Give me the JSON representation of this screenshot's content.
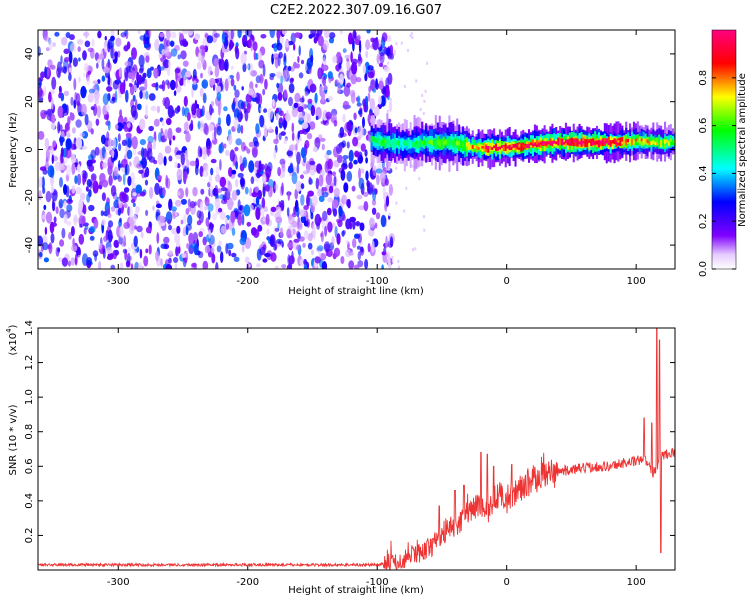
{
  "figure_title": "C2E2.2022.307.09.16.G07",
  "colorbar": {
    "label": "Normalized spectral amplitude",
    "ticks": [
      "0.0",
      "0.2",
      "0.4",
      "0.6",
      "0.8"
    ],
    "range": [
      0,
      1
    ],
    "colormap": [
      "#ffffff",
      "#7f00ff",
      "#0000ff",
      "#00ffff",
      "#00ff00",
      "#ffff00",
      "#ff0000",
      "#ff0080"
    ]
  },
  "chart_data": [
    {
      "type": "heatmap",
      "title": "",
      "xlabel": "Height of straight line (km)",
      "ylabel": "Frequency (Hz)",
      "xlim": [
        -362,
        130
      ],
      "ylim": [
        -50,
        50
      ],
      "xticks": [
        -300,
        -200,
        -100,
        0,
        100
      ],
      "yticks": [
        -40,
        -20,
        0,
        20,
        40
      ],
      "noise_region": {
        "x_range": [
          -362,
          -93
        ],
        "f_range": [
          -50,
          50
        ],
        "amplitude": [
          0.05,
          0.35
        ]
      },
      "signal_ridge": {
        "x": [
          -105,
          -95,
          -85,
          -75,
          -65,
          -55,
          -45,
          -35,
          -25,
          -15,
          -5,
          5,
          20,
          40,
          60,
          80,
          100,
          115,
          130
        ],
        "frequency_hz": [
          4,
          3,
          2.5,
          2,
          3,
          2.5,
          3,
          2,
          1,
          0.5,
          1,
          1,
          2,
          3,
          3,
          3,
          3.5,
          3,
          3
        ],
        "peak_amplitude": [
          0.5,
          0.55,
          0.5,
          0.5,
          0.55,
          0.6,
          0.6,
          0.6,
          0.8,
          0.9,
          0.9,
          0.9,
          0.9,
          0.95,
          0.95,
          0.95,
          0.75,
          0.7,
          0.65
        ]
      }
    },
    {
      "type": "line",
      "title": "",
      "xlabel": "Height of straight line (km)",
      "ylabel": "SNR (10 * v/v)",
      "y_multiplier_label": "(x10",
      "y_multiplier_exp": "4",
      "xlim": [
        -362,
        130
      ],
      "ylim": [
        0,
        1.4
      ],
      "xticks": [
        -300,
        -200,
        -100,
        0,
        100
      ],
      "yticks": [
        "0.2",
        "0.4",
        "0.6",
        "0.8",
        "1.0",
        "1.2",
        "1.4"
      ],
      "series_color": "#ee3333",
      "x": [
        -362,
        -300,
        -250,
        -200,
        -150,
        -120,
        -100,
        -90,
        -80,
        -70,
        -60,
        -50,
        -45,
        -40,
        -35,
        -30,
        -25,
        -20,
        -15,
        -10,
        -5,
        0,
        5,
        10,
        15,
        20,
        25,
        30,
        40,
        50,
        60,
        70,
        80,
        90,
        100,
        105,
        110,
        113,
        116,
        120,
        125,
        130
      ],
      "values": [
        0.03,
        0.03,
        0.03,
        0.03,
        0.03,
        0.03,
        0.03,
        0.04,
        0.05,
        0.09,
        0.13,
        0.18,
        0.25,
        0.24,
        0.28,
        0.33,
        0.36,
        0.38,
        0.32,
        0.4,
        0.44,
        0.4,
        0.44,
        0.48,
        0.49,
        0.52,
        0.54,
        0.55,
        0.57,
        0.58,
        0.59,
        0.6,
        0.6,
        0.62,
        0.63,
        0.64,
        0.62,
        0.56,
        0.6,
        0.66,
        0.68,
        0.68
      ],
      "spikes": [
        {
          "x": -52,
          "y": 0.37
        },
        {
          "x": -40,
          "y": 0.46
        },
        {
          "x": -33,
          "y": 0.49
        },
        {
          "x": -20,
          "y": 0.68
        },
        {
          "x": -15,
          "y": 0.67
        },
        {
          "x": -10,
          "y": 0.6
        },
        {
          "x": 4,
          "y": 0.61
        },
        {
          "x": 106,
          "y": 0.88
        },
        {
          "x": 112,
          "y": 0.85
        },
        {
          "x": 116,
          "y": 1.4
        },
        {
          "x": 118,
          "y": 1.33
        },
        {
          "x": 119,
          "y": 0.1
        }
      ]
    }
  ]
}
